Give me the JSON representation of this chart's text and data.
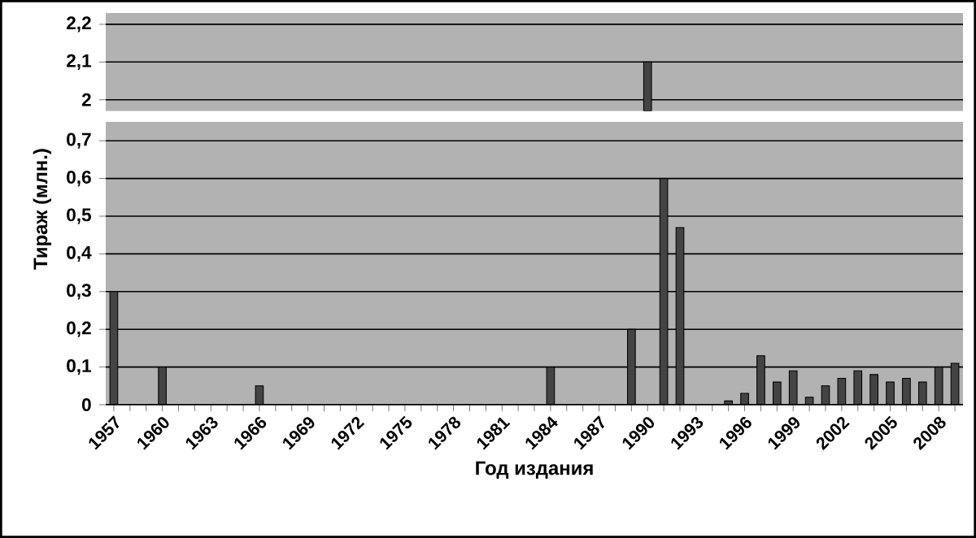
{
  "chart_data": [
    {
      "type": "bar",
      "categories": [
        "1957",
        null,
        null,
        "1960",
        null,
        null,
        "1963",
        null,
        null,
        "1966",
        null,
        null,
        "1969",
        null,
        null,
        "1972",
        null,
        null,
        "1975",
        null,
        null,
        "1978",
        null,
        null,
        "1981",
        null,
        null,
        "1984",
        null,
        null,
        "1987",
        null,
        null,
        "1990",
        null,
        null,
        "1993",
        null,
        null,
        "1996",
        null,
        null,
        "1999",
        null,
        null,
        "2002",
        null,
        null,
        "2005",
        null,
        null,
        "2008",
        null
      ],
      "values": [
        null,
        null,
        null,
        null,
        null,
        null,
        null,
        null,
        null,
        null,
        null,
        null,
        null,
        null,
        null,
        null,
        null,
        null,
        null,
        null,
        null,
        null,
        null,
        null,
        null,
        null,
        null,
        null,
        null,
        null,
        null,
        null,
        null,
        2.1,
        null,
        null,
        null,
        null,
        null,
        null,
        null,
        null,
        null,
        null,
        null,
        null,
        null,
        null,
        null,
        null,
        null,
        null,
        null
      ],
      "color": "#444444",
      "ylim": [
        1.97,
        2.23
      ],
      "yticks": [
        2,
        {
          "value": 2.1,
          "label": "2,1"
        },
        {
          "value": 2.2,
          "label": "2,2"
        }
      ],
      "tick_labels": "y",
      "grid": "y"
    },
    {
      "type": "bar",
      "xlabel": "Год издания",
      "ylabel": "Тираж (млн.)",
      "categories": [
        "1957",
        null,
        null,
        "1960",
        null,
        null,
        "1963",
        null,
        null,
        "1966",
        null,
        null,
        "1969",
        null,
        null,
        "1972",
        null,
        null,
        "1975",
        null,
        null,
        "1978",
        null,
        null,
        "1981",
        null,
        null,
        "1984",
        null,
        null,
        "1987",
        null,
        null,
        "1990",
        null,
        null,
        "1993",
        null,
        null,
        "1996",
        null,
        null,
        "1999",
        null,
        null,
        "2002",
        null,
        null,
        "2005",
        null,
        null,
        "2008",
        null
      ],
      "values": [
        0.3,
        null,
        null,
        0.1,
        null,
        null,
        null,
        null,
        null,
        0.05,
        null,
        null,
        null,
        null,
        null,
        null,
        null,
        null,
        null,
        null,
        null,
        null,
        null,
        null,
        null,
        null,
        null,
        0.1,
        null,
        null,
        null,
        null,
        0.2,
        null,
        0.6,
        0.47,
        null,
        null,
        0.01,
        0.03,
        0.13,
        0.06,
        0.09,
        0.02,
        0.05,
        0.07,
        0.09,
        0.08,
        0.06,
        0.07,
        0.06,
        0.1,
        0.11
      ],
      "color": "#444444",
      "ylim": [
        0,
        0.75
      ],
      "yticks": [
        0,
        {
          "value": 0.1,
          "label": "0,1"
        },
        {
          "value": 0.2,
          "label": "0,2"
        },
        {
          "value": 0.3,
          "label": "0,3"
        },
        {
          "value": 0.4,
          "label": "0,4"
        },
        {
          "value": 0.5,
          "label": "0,5"
        },
        {
          "value": 0.6,
          "label": "0,6"
        },
        {
          "value": 0.7,
          "label": "0,7"
        }
      ],
      "grid": "y"
    }
  ]
}
